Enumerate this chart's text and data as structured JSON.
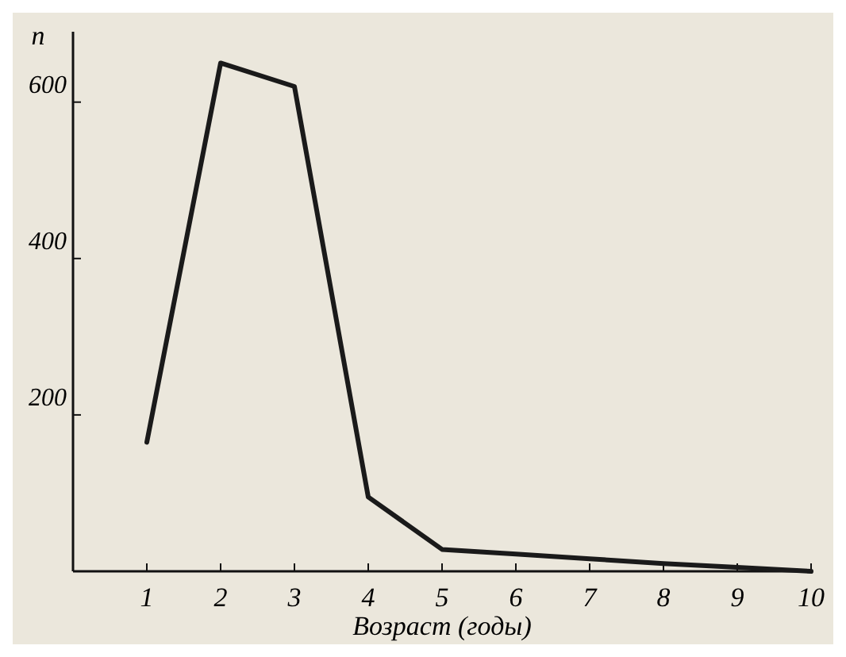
{
  "chart_data": {
    "type": "line",
    "xlabel": "Возраст (годы)",
    "ylabel": "n",
    "x": [
      1,
      2,
      3,
      4,
      5,
      6,
      7,
      8,
      9,
      10
    ],
    "series": [
      {
        "color": "#1a1a1a",
        "values": [
          165,
          650,
          620,
          95,
          28,
          22,
          16,
          10,
          5,
          0
        ]
      }
    ],
    "xlim": [
      0,
      10
    ],
    "ylim": [
      0,
      690
    ],
    "xticks": [
      1,
      2,
      3,
      4,
      5,
      6,
      7,
      8,
      9,
      10
    ],
    "yticks": [
      200,
      400,
      600
    ],
    "grid": false,
    "marker": "none",
    "line_style": "solid"
  }
}
